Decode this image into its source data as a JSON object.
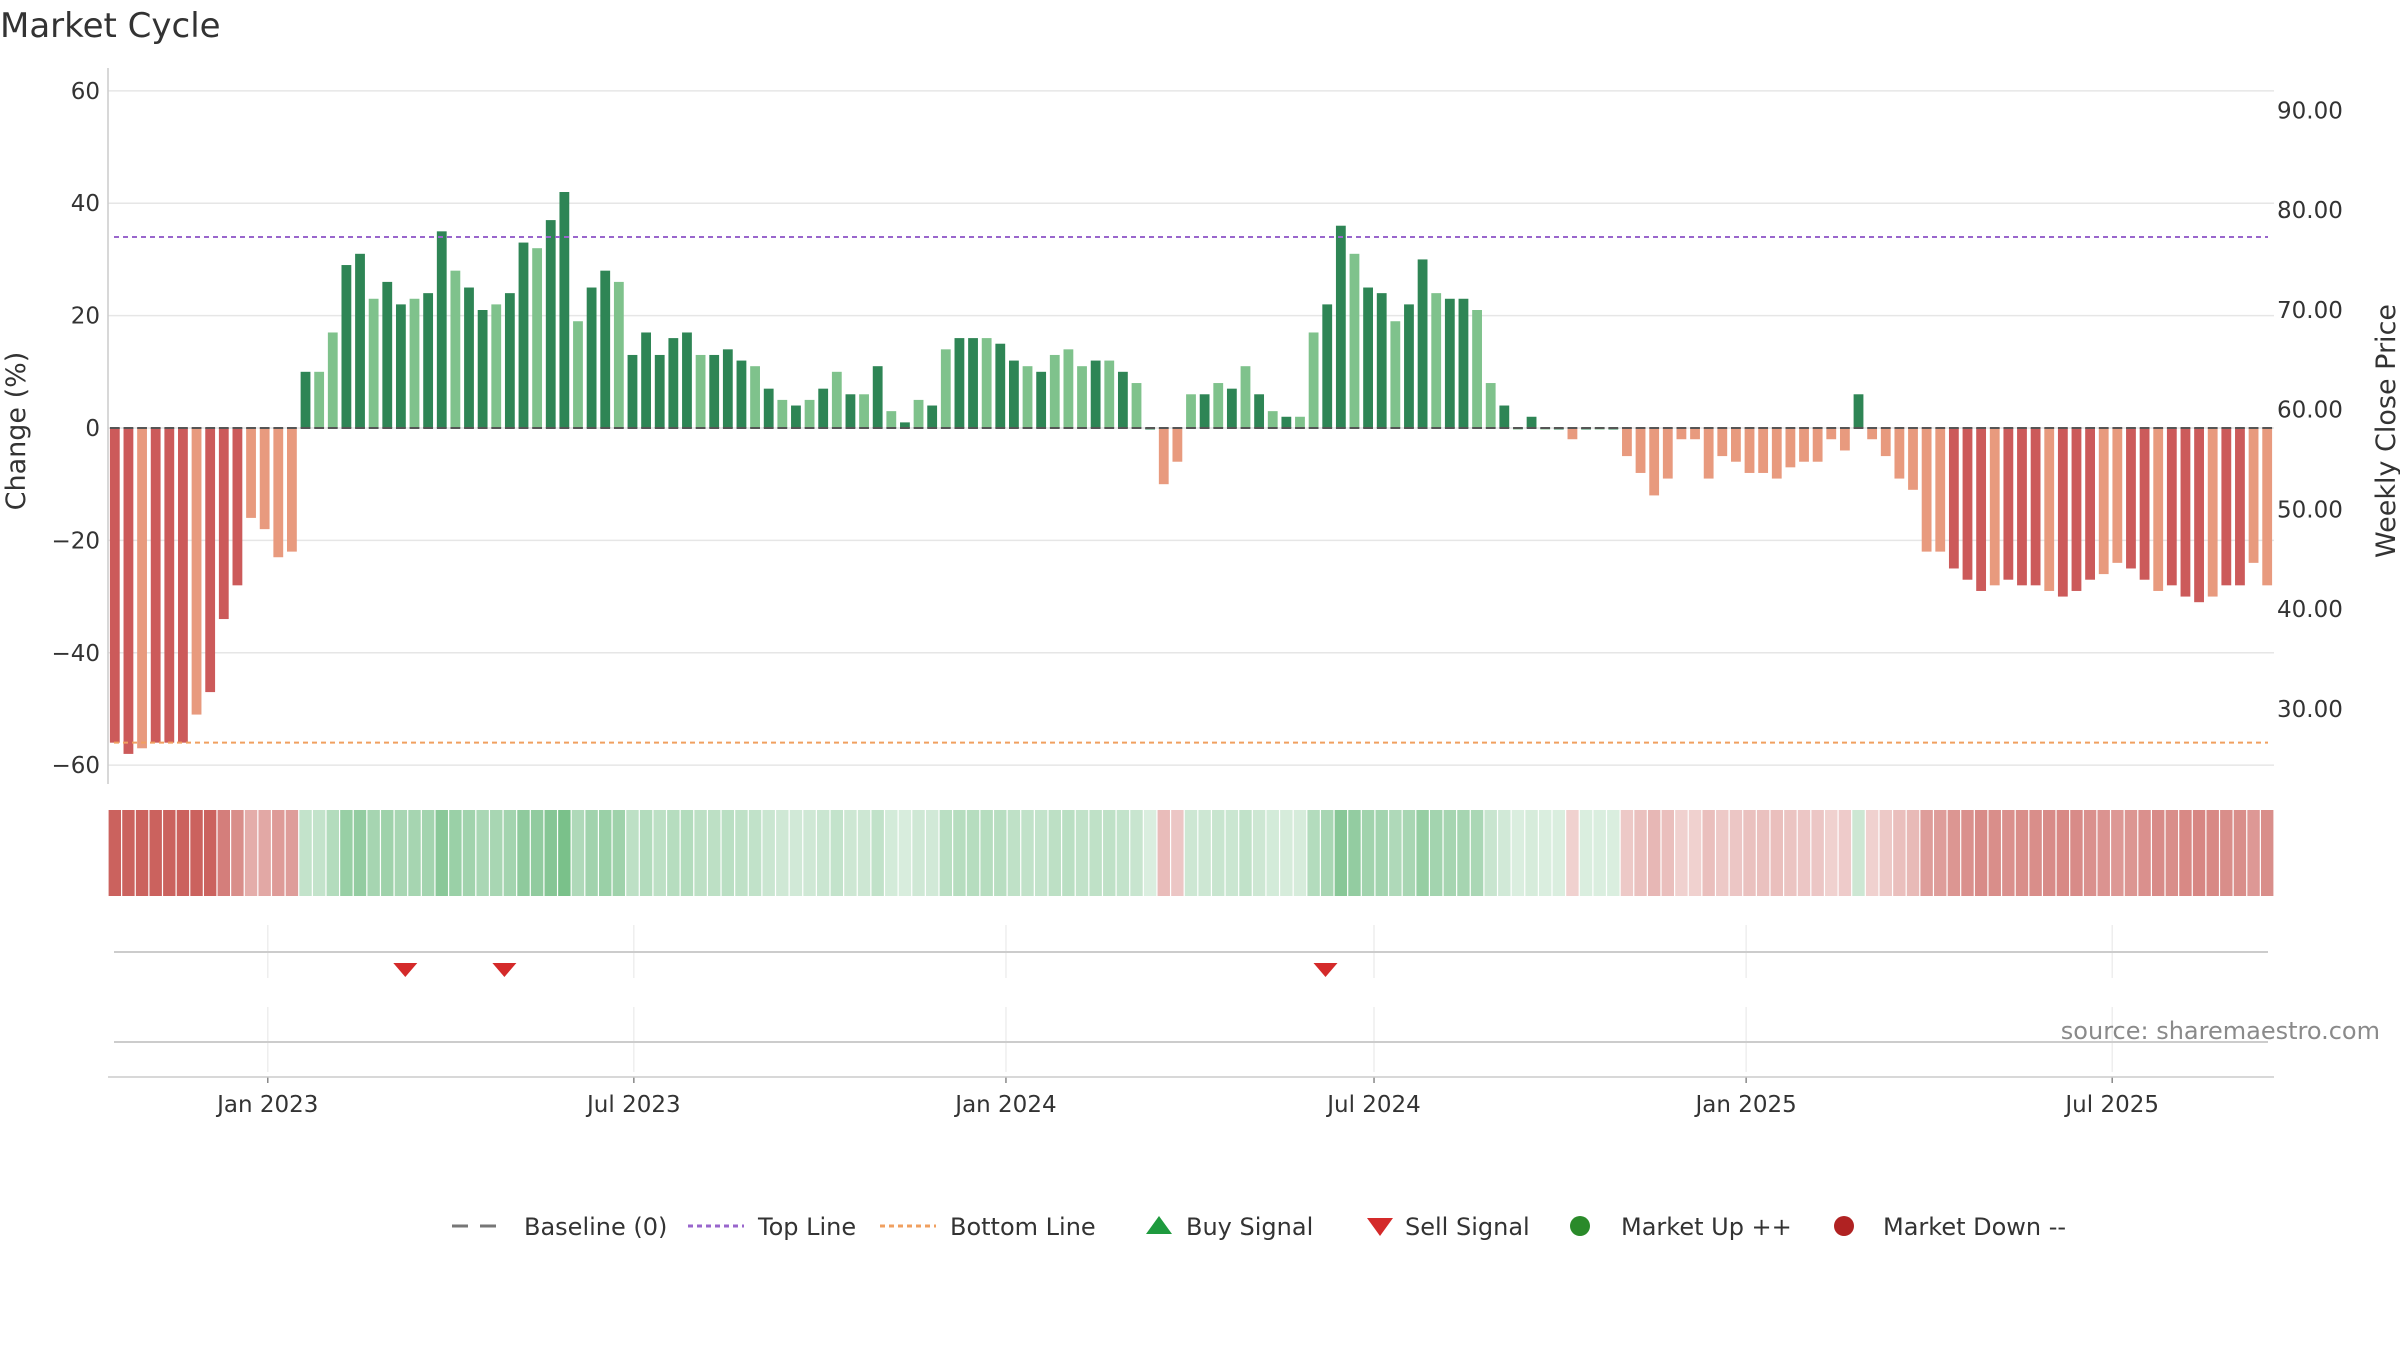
{
  "chart_data": {
    "type": "bar",
    "title": "Market Cycle",
    "ylabel_left": "Change (%)",
    "ylabel_right": "Weekly Close Price",
    "source": "source: sharemaestro.com",
    "ylim_left": [
      -63,
      63
    ],
    "left_ticks": [
      {
        "value": 60,
        "label": "60"
      },
      {
        "value": 40,
        "label": "40"
      },
      {
        "value": 20,
        "label": "20"
      },
      {
        "value": 0,
        "label": "0"
      },
      {
        "value": -20,
        "label": "−20"
      },
      {
        "value": -40,
        "label": "−40"
      },
      {
        "value": -60,
        "label": "−60"
      }
    ],
    "right_ticks": [
      {
        "change": 56.5,
        "label": "90.00"
      },
      {
        "change": 38.8,
        "label": "80.00"
      },
      {
        "change": 21.0,
        "label": "70.00"
      },
      {
        "change": 3.3,
        "label": "60.00"
      },
      {
        "change": -14.5,
        "label": "50.00"
      },
      {
        "change": -32.2,
        "label": "40.00"
      },
      {
        "change": -50.0,
        "label": "30.00"
      }
    ],
    "top_line": 34,
    "bottom_line": -56,
    "x_start": "2022-10-14",
    "x_end": "2025-09-19",
    "x_ticks": [
      {
        "date": "2023-01-01",
        "label": "Jan 2023"
      },
      {
        "date": "2023-07-01",
        "label": "Jul 2023"
      },
      {
        "date": "2024-01-01",
        "label": "Jan 2024"
      },
      {
        "date": "2024-07-01",
        "label": "Jul 2024"
      },
      {
        "date": "2025-01-01",
        "label": "Jan 2025"
      },
      {
        "date": "2025-07-01",
        "label": "Jul 2025"
      }
    ],
    "values": [
      -56,
      -58,
      -57,
      -56,
      -56,
      -56,
      -51,
      -47,
      -34,
      -28,
      -16,
      -18,
      -23,
      -22,
      10,
      10,
      17,
      29,
      31,
      23,
      26,
      22,
      23,
      24,
      35,
      28,
      25,
      21,
      22,
      24,
      33,
      32,
      37,
      42,
      19,
      25,
      28,
      26,
      13,
      17,
      13,
      16,
      17,
      13,
      13,
      14,
      12,
      11,
      7,
      5,
      4,
      5,
      7,
      10,
      6,
      6,
      11,
      3,
      1,
      5,
      4,
      14,
      16,
      16,
      16,
      15,
      12,
      11,
      10,
      13,
      14,
      11,
      12,
      12,
      10,
      8,
      0,
      -10,
      -6,
      6,
      6,
      8,
      7,
      11,
      6,
      3,
      2,
      2,
      17,
      22,
      36,
      31,
      25,
      24,
      19,
      22,
      30,
      24,
      23,
      23,
      21,
      8,
      4,
      0,
      2,
      0,
      0,
      -2,
      0,
      0,
      0,
      -5,
      -8,
      -12,
      -9,
      -2,
      -2,
      -9,
      -5,
      -6,
      -8,
      -8,
      -9,
      -7,
      -6,
      -6,
      -2,
      -4,
      6,
      -2,
      -5,
      -9,
      -11,
      -22,
      -22,
      -25,
      -27,
      -29,
      -28,
      -27,
      -28,
      -28,
      -29,
      -30,
      -29,
      -27,
      -26,
      -24,
      -25,
      -27,
      -29,
      -28,
      -30,
      -31,
      -30,
      -28,
      -28,
      -24,
      -28
    ],
    "bar_colors": {
      "up_strong": "#2e8555",
      "up_weak": "#7fc28c",
      "down_strong": "#cc5a5a",
      "down_weak": "#e89a7e"
    },
    "strip_colors": {
      "up": "#6cba7e",
      "down": "#c85a55"
    },
    "sell_signals": [
      "2023-03-10",
      "2023-04-28",
      "2024-06-07"
    ],
    "buy_signals": [],
    "market_up_points": [],
    "market_down_points": [],
    "legend": [
      {
        "kind": "dash",
        "label": "Baseline (0)",
        "color": "#777777"
      },
      {
        "kind": "dotline",
        "label": "Top Line",
        "color": "#9966cc"
      },
      {
        "kind": "dotline",
        "label": "Bottom Line",
        "color": "#f0a060"
      },
      {
        "kind": "tri-up",
        "label": "Buy Signal",
        "color": "#1e9a3e"
      },
      {
        "kind": "tri-down",
        "label": "Sell Signal",
        "color": "#d42a2a"
      },
      {
        "kind": "dot",
        "label": "Market Up ++",
        "color": "#2a8a2a"
      },
      {
        "kind": "dot",
        "label": "Market Down --",
        "color": "#b02222"
      }
    ]
  }
}
